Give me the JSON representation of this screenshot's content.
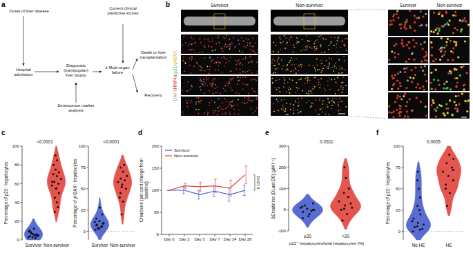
{
  "panel_labels": [
    "a",
    "b",
    "c",
    "d",
    "e",
    "f"
  ],
  "diagram": {
    "nodes": [
      {
        "label": "Onset of liver disease"
      },
      {
        "label": "Hospital admission"
      },
      {
        "label": "Diagnostic (transjugular) liver biopsy"
      },
      {
        "label": "Senescence marker analysis"
      },
      {
        "label": "Current clinical predictive scores"
      },
      {
        "label": "± Multi-organ failure"
      },
      {
        "label": "Death or liver transplantation"
      },
      {
        "label": "Recovery"
      }
    ]
  },
  "images": {
    "columns": [
      "Survivor",
      "Non-survivor"
    ],
    "zoom_columns": [
      "Survivor",
      "Non-survivor"
    ],
    "stains": [
      {
        "text": "DAPI/",
        "color": "#a0a0a0"
      },
      {
        "text": "HNF4α",
        "color": "#e03030"
      },
      {
        "text": "/",
        "color": "#a0a0a0"
      },
      {
        "text": "p21",
        "color": "#2fbf3a"
      },
      {
        "text": "/",
        "color": "#a0a0a0"
      },
      {
        "text": "γH2AX",
        "color": "#d9b81e"
      }
    ]
  },
  "chart_data": [
    {
      "type": "violin",
      "y_label": "Percentage of p21⁺ hepatocytes",
      "categories": [
        "Survivor",
        "Non-survivor"
      ],
      "colors": [
        "#4b5fd0",
        "#e2463f"
      ],
      "values": [
        [
          3,
          5,
          8,
          4,
          6,
          10,
          2,
          7,
          5,
          12,
          4,
          6,
          3,
          9,
          5,
          8
        ],
        [
          30,
          40,
          45,
          50,
          55,
          58,
          60,
          62,
          65,
          68,
          70,
          72,
          75,
          80,
          85,
          90,
          35,
          55,
          62
        ]
      ],
      "ylim": [
        0,
        100
      ],
      "yticks": [
        0,
        20,
        40,
        60,
        80,
        100
      ],
      "annotation": "<0.0001"
    },
    {
      "type": "violin",
      "y_label": "Percentage of γH2AX⁺ hepatocytes",
      "categories": [
        "Survivor",
        "Non-survivor"
      ],
      "colors": [
        "#4b5fd0",
        "#e2463f"
      ],
      "values": [
        [
          2,
          5,
          8,
          10,
          12,
          15,
          6,
          4,
          20,
          28,
          7,
          9,
          3,
          11
        ],
        [
          20,
          35,
          45,
          50,
          55,
          58,
          60,
          62,
          65,
          70,
          75,
          78,
          52,
          40
        ]
      ],
      "ylim": [
        -10,
        100
      ],
      "yticks": [
        0,
        25,
        50,
        75,
        100
      ],
      "reference_line": 0,
      "annotation": "<0.0001"
    },
    {
      "type": "line",
      "y_label": "Creatinine (per cent change from baseline)",
      "categories": [
        "Day 0",
        "Day 2",
        "Day 3",
        "Day 7",
        "Day 14",
        "Day 28"
      ],
      "series": [
        {
          "name": "Survivor",
          "color": "#3d55d8",
          "values": [
            100,
            100,
            90,
            98,
            90,
            100
          ],
          "errors": [
            0,
            8,
            10,
            12,
            15,
            12
          ]
        },
        {
          "name": "Non-survivor",
          "color": "#e2463f",
          "values": [
            100,
            110,
            108,
            110,
            105,
            135
          ],
          "errors": [
            0,
            6,
            10,
            15,
            18,
            20
          ]
        }
      ],
      "ylim": [
        0,
        200
      ],
      "yticks": [
        0,
        50,
        100,
        150,
        200
      ],
      "legend": "upper left",
      "annotation": "0.0243"
    },
    {
      "type": "violin",
      "y_label": "ΔCreatinine (DLast-D0) (μM l⁻¹)",
      "x_label": "p21⁺ hepatocytes/total hepatocytes (%)",
      "categories": [
        "≤20",
        ">20"
      ],
      "colors": [
        "#4b5fd0",
        "#e2463f"
      ],
      "values": [
        [
          -40,
          -20,
          -10,
          0,
          5,
          10,
          -5,
          20,
          30,
          -30,
          15,
          0
        ],
        [
          -50,
          -20,
          0,
          10,
          20,
          40,
          60,
          80,
          100,
          150,
          200,
          30,
          5
        ]
      ],
      "ylim": [
        -100,
        300
      ],
      "yticks": [
        -100,
        0,
        100,
        200,
        300
      ],
      "annotation": "0.0311"
    },
    {
      "type": "violin",
      "y_label": "Percentage of p21⁺ hepatocytes",
      "categories": [
        "No HE",
        "HE"
      ],
      "colors": [
        "#4b5fd0",
        "#e2463f"
      ],
      "values": [
        [
          0,
          2,
          5,
          8,
          10,
          15,
          20,
          30,
          40,
          50,
          60,
          3,
          6,
          12,
          25,
          70
        ],
        [
          30,
          45,
          55,
          60,
          65,
          70,
          75,
          80,
          85,
          90,
          50,
          72
        ]
      ],
      "ylim": [
        -10,
        100
      ],
      "yticks": [
        0,
        25,
        50,
        75,
        100
      ],
      "reference_line": 0,
      "annotation": "0.0005"
    }
  ]
}
